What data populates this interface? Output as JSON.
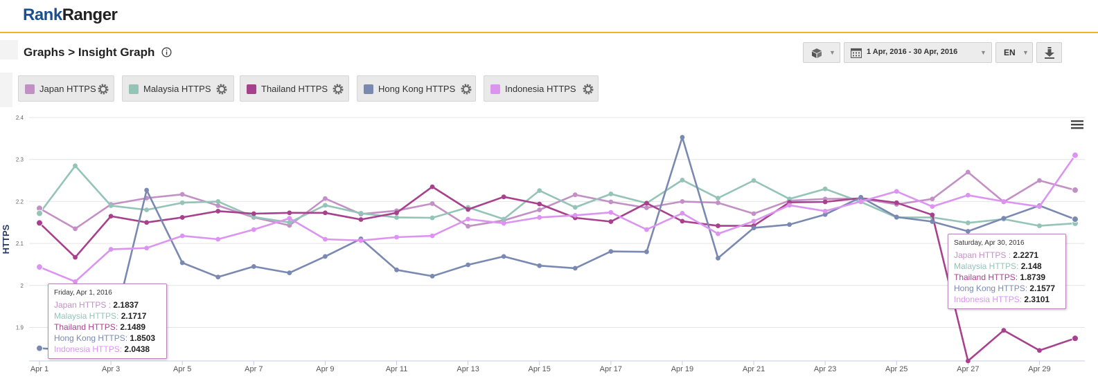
{
  "header": {
    "logo_rank": "Rank",
    "logo_ranger": "Ranger"
  },
  "breadcrumb": "Graphs > Insight Graph",
  "controls": {
    "date_range": "1 Apr, 2016 - 30 Apr, 2016",
    "language": "EN"
  },
  "icons": {
    "info": "info-icon",
    "cube": "cube-icon",
    "calendar": "calendar-icon",
    "download": "download-icon",
    "gear": "gear-icon",
    "menu": "hamburger-menu-icon"
  },
  "legend": [
    {
      "label": "Japan HTTPS",
      "color": "#c390c6"
    },
    {
      "label": "Malaysia HTTPS",
      "color": "#94c4b7"
    },
    {
      "label": "Thailand HTTPS",
      "color": "#a7418d"
    },
    {
      "label": "Hong Kong HTTPS",
      "color": "#7a89b1"
    },
    {
      "label": "Indonesia HTTPS",
      "color": "#dc94f1"
    }
  ],
  "chart_data": {
    "type": "line",
    "ylabel": "HTTPS",
    "ylim": [
      1.82,
      2.4
    ],
    "yticks": [
      "2.4",
      "2.3",
      "2.2",
      "2.1",
      "2",
      "1.9"
    ],
    "ytick_values": [
      2.4,
      2.3,
      2.2,
      2.1,
      2.0,
      1.9
    ],
    "xtick_labels": [
      "Apr 1",
      "Apr 3",
      "Apr 5",
      "Apr 7",
      "Apr 9",
      "Apr 11",
      "Apr 13",
      "Apr 15",
      "Apr 17",
      "Apr 19",
      "Apr 21",
      "Apr 23",
      "Apr 25",
      "Apr 27",
      "Apr 29"
    ],
    "x": [
      1,
      2,
      3,
      4,
      5,
      6,
      7,
      8,
      9,
      10,
      11,
      12,
      13,
      14,
      15,
      16,
      17,
      18,
      19,
      20,
      21,
      22,
      23,
      24,
      25,
      26,
      27,
      28,
      29,
      30
    ],
    "grid": true,
    "series": [
      {
        "name": "Japan HTTPS",
        "color": "#c390c6",
        "values": [
          2.1837,
          2.135,
          2.193,
          2.208,
          2.217,
          2.19,
          2.162,
          2.143,
          2.207,
          2.17,
          2.178,
          2.195,
          2.141,
          2.155,
          2.18,
          2.216,
          2.199,
          2.185,
          2.2,
          2.197,
          2.171,
          2.202,
          2.206,
          2.207,
          2.193,
          2.206,
          2.27,
          2.199,
          2.25,
          2.2271
        ]
      },
      {
        "name": "Malaysia HTTPS",
        "color": "#94c4b7",
        "values": [
          2.1717,
          2.285,
          2.19,
          2.18,
          2.197,
          2.2,
          2.163,
          2.15,
          2.191,
          2.172,
          2.162,
          2.161,
          2.186,
          2.158,
          2.226,
          2.186,
          2.218,
          2.196,
          2.251,
          2.208,
          2.25,
          2.206,
          2.23,
          2.199,
          2.162,
          2.162,
          2.149,
          2.158,
          2.142,
          2.148
        ]
      },
      {
        "name": "Thailand HTTPS",
        "color": "#a7418d",
        "values": [
          2.1489,
          2.067,
          2.165,
          2.15,
          2.162,
          2.177,
          2.171,
          2.173,
          2.173,
          2.157,
          2.173,
          2.235,
          2.181,
          2.211,
          2.194,
          2.161,
          2.152,
          2.196,
          2.153,
          2.142,
          2.142,
          2.198,
          2.199,
          2.208,
          2.197,
          2.168,
          1.82,
          1.893,
          1.845,
          1.8739
        ]
      },
      {
        "name": "Hong Kong HTTPS",
        "color": "#7a89b1",
        "values": [
          1.8503,
          1.845,
          1.875,
          2.227,
          2.054,
          2.02,
          2.045,
          2.03,
          2.069,
          2.111,
          2.037,
          2.022,
          2.049,
          2.069,
          2.047,
          2.041,
          2.081,
          2.08,
          2.353,
          2.065,
          2.137,
          2.145,
          2.169,
          2.21,
          2.163,
          2.152,
          2.129,
          2.16,
          2.19,
          2.1577
        ]
      },
      {
        "name": "Indonesia HTTPS",
        "color": "#dc94f1",
        "values": [
          2.0438,
          2.009,
          2.086,
          2.089,
          2.118,
          2.11,
          2.133,
          2.16,
          2.11,
          2.107,
          2.115,
          2.118,
          2.158,
          2.148,
          2.162,
          2.167,
          2.174,
          2.133,
          2.172,
          2.123,
          2.153,
          2.191,
          2.177,
          2.2,
          2.224,
          2.188,
          2.215,
          2.2,
          2.188,
          2.3101
        ]
      }
    ]
  },
  "tooltip_left": {
    "date": "Friday, Apr 1, 2016",
    "rows": [
      {
        "label": "Japan HTTPS",
        "sep": " : ",
        "value": "2.1837",
        "color": "#c390c6"
      },
      {
        "label": "Malaysia HTTPS",
        "sep": ": ",
        "value": "2.1717",
        "color": "#94c4b7"
      },
      {
        "label": "Thailand HTTPS",
        "sep": ": ",
        "value": "2.1489",
        "color": "#a7418d"
      },
      {
        "label": "Hong Kong HTTPS",
        "sep": ": ",
        "value": "1.8503",
        "color": "#7a89b1"
      },
      {
        "label": "Indonesia HTTPS",
        "sep": ": ",
        "value": "2.0438",
        "color": "#dc94f1"
      }
    ]
  },
  "tooltip_right": {
    "date": "Saturday, Apr 30, 2016",
    "rows": [
      {
        "label": "Japan HTTPS",
        "sep": " : ",
        "value": "2.2271",
        "color": "#c390c6"
      },
      {
        "label": "Malaysia HTTPS",
        "sep": ": ",
        "value": "2.148",
        "color": "#94c4b7"
      },
      {
        "label": "Thailand HTTPS",
        "sep": ": ",
        "value": "1.8739",
        "color": "#a7418d"
      },
      {
        "label": "Hong Kong HTTPS",
        "sep": ": ",
        "value": "2.1577",
        "color": "#7a89b1"
      },
      {
        "label": "Indonesia HTTPS",
        "sep": ": ",
        "value": "2.3101",
        "color": "#dc94f1"
      }
    ]
  }
}
